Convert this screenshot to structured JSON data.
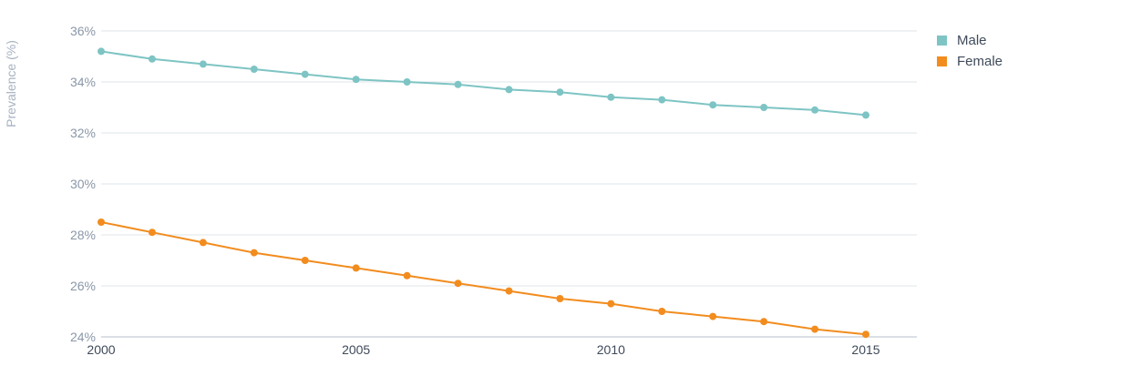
{
  "chart_data": {
    "type": "line",
    "title": "",
    "xlabel": "",
    "ylabel": "Prevalence (%)",
    "x": [
      2000,
      2001,
      2002,
      2003,
      2004,
      2005,
      2006,
      2007,
      2008,
      2009,
      2010,
      2011,
      2012,
      2013,
      2014,
      2015
    ],
    "xlim": [
      2000,
      2016
    ],
    "xticks": [
      "2000",
      "2005",
      "2010",
      "2015"
    ],
    "ylim": [
      24,
      36
    ],
    "yticks": [
      "24%",
      "26%",
      "28%",
      "30%",
      "32%",
      "34%",
      "36%"
    ],
    "grid": true,
    "legend_position": "top-right",
    "series": [
      {
        "name": "Male",
        "color": "#7ec4c4",
        "values": [
          35.2,
          34.9,
          34.7,
          34.5,
          34.3,
          34.1,
          34.0,
          33.9,
          33.7,
          33.6,
          33.4,
          33.3,
          33.1,
          33.0,
          32.9,
          32.7
        ]
      },
      {
        "name": "Female",
        "color": "#f28c1e",
        "values": [
          28.5,
          28.1,
          27.7,
          27.3,
          27.0,
          26.7,
          26.4,
          26.1,
          25.8,
          25.5,
          25.3,
          25.0,
          24.8,
          24.6,
          24.3,
          24.1
        ]
      }
    ]
  }
}
